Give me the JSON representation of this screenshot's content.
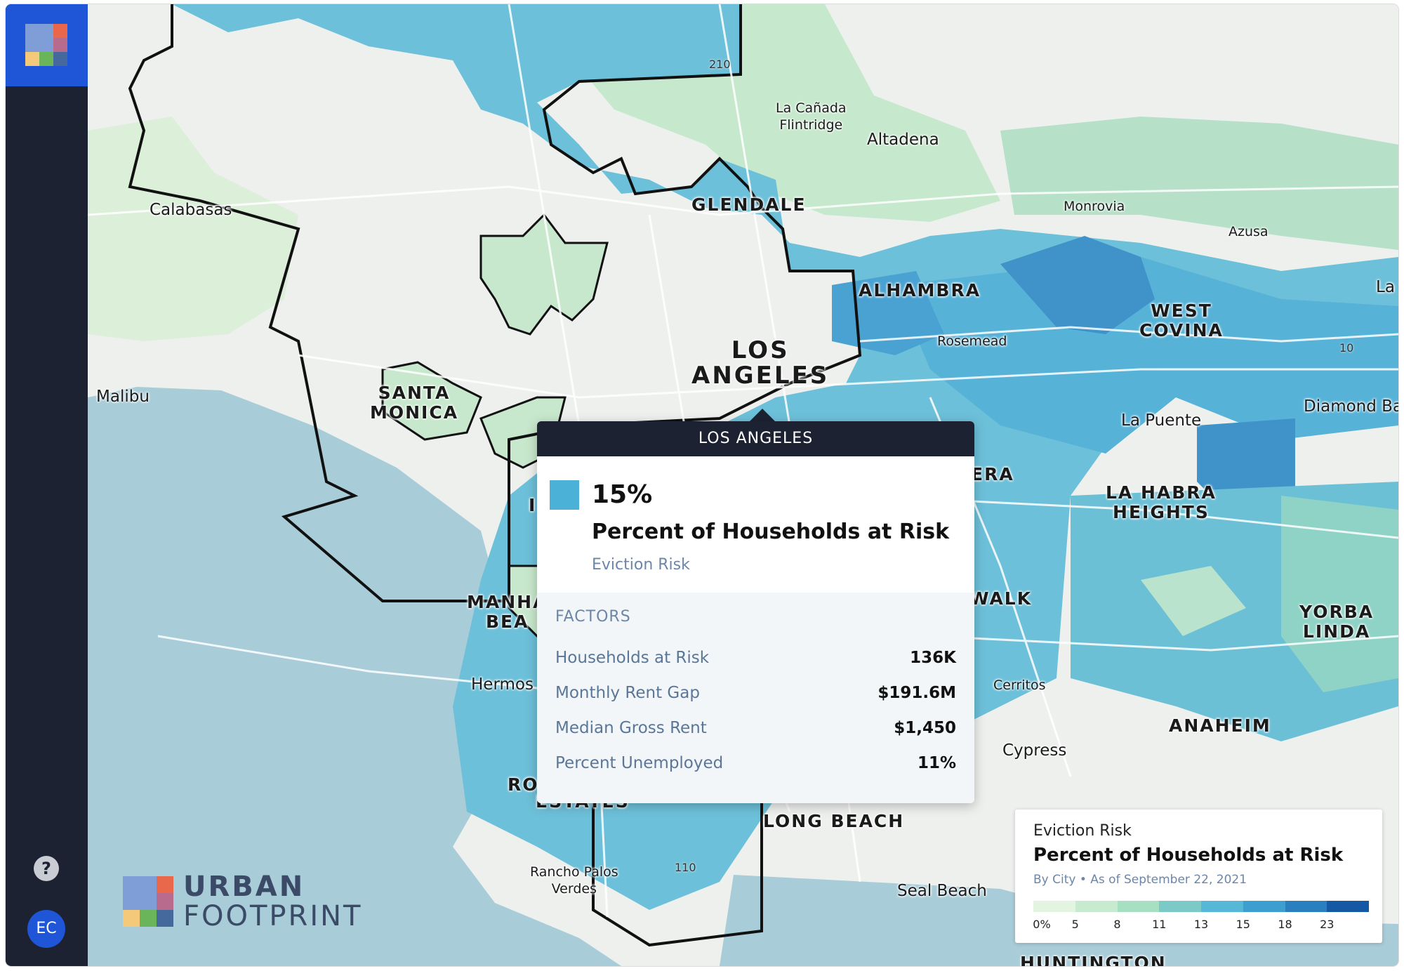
{
  "sidebar": {
    "help_label": "?",
    "avatar_initials": "EC"
  },
  "brand": {
    "line1": "URBAN",
    "line2": "FOOTPRINT"
  },
  "map": {
    "places": {
      "calabasas": "Calabasas",
      "malibu": "Malibu",
      "santa_monica": "SANTA\nMONICA",
      "glendale": "GLENDALE",
      "la_canada": "La Cañada\nFlintridge",
      "altadena": "Altadena",
      "monrovia": "Monrovia",
      "azusa": "Azusa",
      "la_edge": "La",
      "alhambra": "ALHAMBRA",
      "west_covina": "WEST\nCOVINA",
      "rosemead": "Rosemead",
      "los_angeles": "LOS\nANGELES",
      "diamond_bar": "Diamond Ba",
      "la_puente": "La Puente",
      "era": "ERA",
      "la_habra": "LA HABRA\nHEIGHTS",
      "manhattan": "MANHA\nBEA",
      "walk": "WALK",
      "yorba_linda": "YORBA\nLINDA",
      "hermosa": "Hermos",
      "cerritos": "Cerritos",
      "anaheim": "ANAHEIM",
      "cypress": "Cypress",
      "ro": "RO",
      "estates": "ESTATES",
      "long_beach": "LONG BEACH",
      "rancho": "Rancho Palos\nVerdes",
      "seal_beach": "Seal Beach",
      "huntington": "HUNTINGTON",
      "i_letter": "I"
    },
    "highways": {
      "h210": "210",
      "h10": "10",
      "h110": "110"
    }
  },
  "popup": {
    "title": "LOS ANGELES",
    "value": "15%",
    "metric": "Percent of Households at Risk",
    "category": "Eviction Risk",
    "swatch_color": "#4cb1d6",
    "factors_title": "FACTORS",
    "factors": [
      {
        "label": "Households at Risk",
        "value": "136K"
      },
      {
        "label": "Monthly Rent Gap",
        "value": "$191.6M"
      },
      {
        "label": "Median Gross Rent",
        "value": "$1,450"
      },
      {
        "label": "Percent Unemployed",
        "value": "11%"
      }
    ]
  },
  "legend": {
    "category": "Eviction Risk",
    "title": "Percent of Households at Risk",
    "meta": "By City  •  As of September 22, 2021",
    "colors": [
      "#e3f4e1",
      "#c8ebcf",
      "#a6dfc2",
      "#7ccac7",
      "#56b8d6",
      "#3d9fcf",
      "#2a7fbf",
      "#1558a3"
    ],
    "ticks": [
      "0%",
      "5",
      "8",
      "11",
      "13",
      "15",
      "18",
      "23"
    ]
  }
}
